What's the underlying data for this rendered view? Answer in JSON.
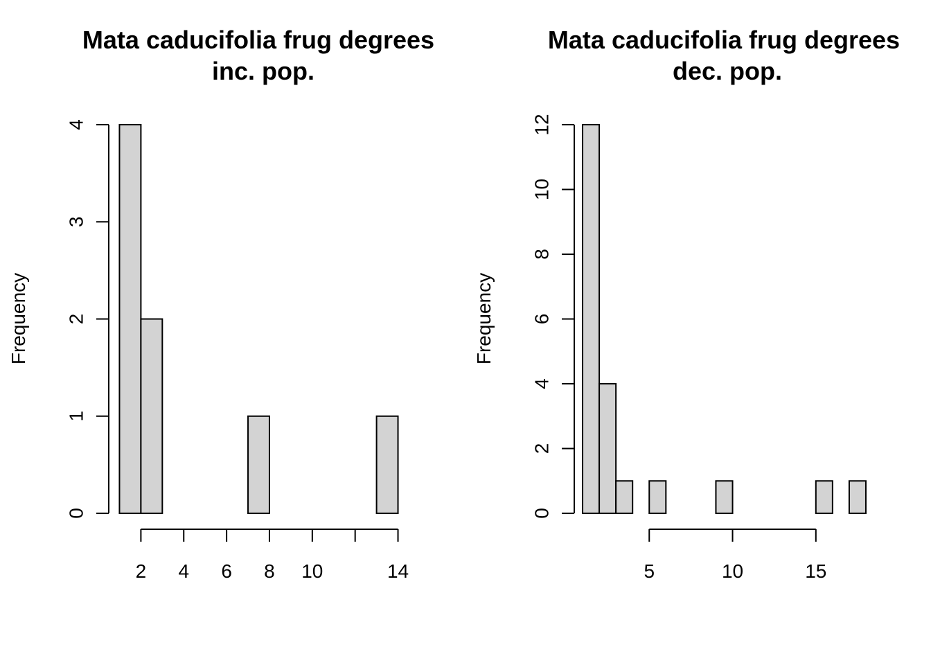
{
  "chart_data": [
    {
      "type": "bar",
      "title_line1": "Mata caducifolia frug degrees",
      "title_line2": "inc. pop.",
      "xlabel": "",
      "ylabel": "Frequency",
      "bin_edges": [
        1,
        2,
        3,
        4,
        5,
        6,
        7,
        8,
        9,
        10,
        11,
        12,
        13,
        14
      ],
      "counts": [
        4,
        2,
        0,
        0,
        0,
        0,
        1,
        0,
        0,
        0,
        0,
        0,
        1
      ],
      "xlim": [
        0.5,
        14.5
      ],
      "ylim": [
        0,
        4
      ],
      "x_ticks": [
        2,
        4,
        6,
        8,
        10,
        12,
        14
      ],
      "x_tick_labels": [
        "2",
        "4",
        "6",
        "8",
        "10",
        "",
        "14"
      ],
      "y_ticks": [
        0,
        1,
        2,
        3,
        4
      ],
      "y_tick_labels": [
        "0",
        "1",
        "2",
        "3",
        "4"
      ],
      "bar_fill": "#d3d3d3"
    },
    {
      "type": "bar",
      "title_line1": "Mata caducifolia frug degrees",
      "title_line2": "dec. pop.",
      "xlabel": "",
      "ylabel": "Frequency",
      "bin_edges": [
        1,
        2,
        3,
        4,
        5,
        6,
        7,
        8,
        9,
        10,
        11,
        12,
        13,
        14,
        15,
        16,
        17,
        18
      ],
      "counts": [
        12,
        4,
        1,
        0,
        1,
        0,
        0,
        0,
        1,
        0,
        0,
        0,
        0,
        0,
        1,
        0,
        1
      ],
      "xlim": [
        0.5,
        18.5
      ],
      "ylim": [
        0,
        12
      ],
      "x_ticks": [
        5,
        10,
        15
      ],
      "x_tick_labels": [
        "5",
        "10",
        "15"
      ],
      "y_ticks": [
        0,
        2,
        4,
        6,
        8,
        10,
        12
      ],
      "y_tick_labels": [
        "0",
        "2",
        "4",
        "6",
        "8",
        "10",
        "12"
      ],
      "bar_fill": "#d3d3d3"
    }
  ]
}
